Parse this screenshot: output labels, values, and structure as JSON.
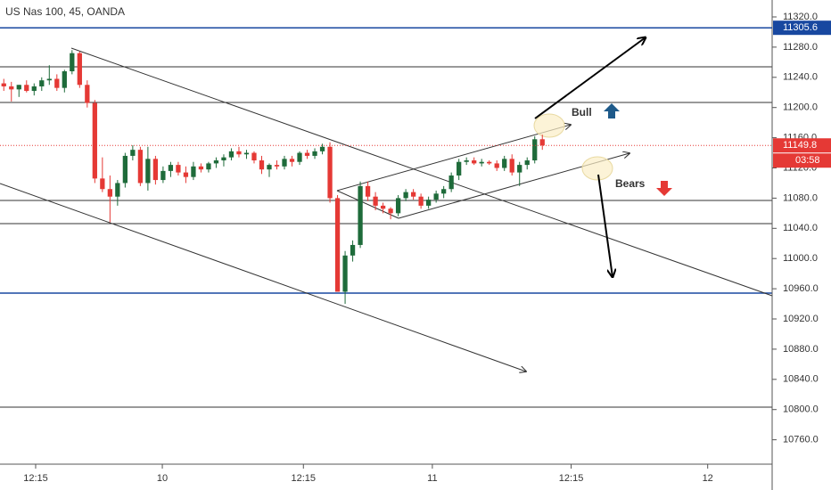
{
  "chart_data": {
    "type": "candlestick",
    "title": "US Nas 100, 45, OANDA",
    "x": [
      0,
      1,
      2,
      3,
      4,
      5,
      6,
      7,
      8,
      9,
      10,
      11,
      12,
      13,
      14,
      15,
      16,
      17,
      18,
      19,
      20,
      21,
      22,
      23,
      24,
      25,
      26,
      27,
      28,
      29,
      30,
      31,
      32,
      33,
      34,
      35,
      36,
      37,
      38,
      39,
      40,
      41,
      42,
      43,
      44,
      45,
      46,
      47,
      48,
      49,
      50,
      51,
      52,
      53,
      54,
      55,
      56,
      57,
      58,
      59,
      60,
      61,
      62,
      63,
      64,
      65,
      66,
      67,
      68,
      69,
      70,
      71
    ],
    "ohlc": [
      [
        11232,
        11238,
        11222,
        11228
      ],
      [
        11228,
        11234,
        11208,
        11224
      ],
      [
        11224,
        11230,
        11214,
        11230
      ],
      [
        11230,
        11236,
        11220,
        11222
      ],
      [
        11222,
        11232,
        11216,
        11228
      ],
      [
        11228,
        11240,
        11222,
        11236
      ],
      [
        11236,
        11256,
        11230,
        11238
      ],
      [
        11238,
        11244,
        11222,
        11226
      ],
      [
        11226,
        11250,
        11220,
        11248
      ],
      [
        11248,
        11276,
        11244,
        11272
      ],
      [
        11272,
        11274,
        11226,
        11230
      ],
      [
        11230,
        11236,
        11200,
        11206
      ],
      [
        11206,
        11210,
        11100,
        11106
      ],
      [
        11106,
        11134,
        11088,
        11092
      ],
      [
        11092,
        11110,
        11048,
        11082
      ],
      [
        11082,
        11104,
        11070,
        11100
      ],
      [
        11100,
        11140,
        11094,
        11136
      ],
      [
        11136,
        11150,
        11130,
        11144
      ],
      [
        11144,
        11148,
        11096,
        11100
      ],
      [
        11100,
        11148,
        11090,
        11132
      ],
      [
        11132,
        11136,
        11098,
        11104
      ],
      [
        11104,
        11122,
        11100,
        11116
      ],
      [
        11116,
        11128,
        11108,
        11124
      ],
      [
        11124,
        11128,
        11110,
        11114
      ],
      [
        11114,
        11122,
        11100,
        11108
      ],
      [
        11108,
        11128,
        11104,
        11122
      ],
      [
        11122,
        11126,
        11114,
        11118
      ],
      [
        11118,
        11128,
        11114,
        11126
      ],
      [
        11126,
        11134,
        11120,
        11130
      ],
      [
        11130,
        11138,
        11122,
        11134
      ],
      [
        11134,
        11146,
        11130,
        11142
      ],
      [
        11142,
        11148,
        11134,
        11138
      ],
      [
        11138,
        11144,
        11132,
        11140
      ],
      [
        11140,
        11142,
        11126,
        11130
      ],
      [
        11130,
        11136,
        11112,
        11118
      ],
      [
        11118,
        11126,
        11108,
        11124
      ],
      [
        11124,
        11130,
        11118,
        11122
      ],
      [
        11122,
        11136,
        11118,
        11132
      ],
      [
        11132,
        11136,
        11122,
        11128
      ],
      [
        11128,
        11142,
        11124,
        11140
      ],
      [
        11140,
        11144,
        11132,
        11136
      ],
      [
        11136,
        11146,
        11132,
        11142
      ],
      [
        11142,
        11152,
        11138,
        11148
      ],
      [
        11148,
        11154,
        11074,
        11080
      ],
      [
        11080,
        11084,
        10956,
        10956
      ],
      [
        10956,
        11010,
        10940,
        11004
      ],
      [
        11004,
        11024,
        10996,
        11018
      ],
      [
        11018,
        11102,
        11014,
        11096
      ],
      [
        11096,
        11102,
        11076,
        11082
      ],
      [
        11082,
        11088,
        11064,
        11070
      ],
      [
        11070,
        11074,
        11060,
        11066
      ],
      [
        11066,
        11068,
        11052,
        11060
      ],
      [
        11060,
        11084,
        11056,
        11080
      ],
      [
        11080,
        11092,
        11076,
        11088
      ],
      [
        11088,
        11092,
        11078,
        11082
      ],
      [
        11082,
        11086,
        11066,
        11070
      ],
      [
        11070,
        11082,
        11066,
        11078
      ],
      [
        11078,
        11090,
        11074,
        11086
      ],
      [
        11086,
        11096,
        11080,
        11092
      ],
      [
        11092,
        11114,
        11088,
        11110
      ],
      [
        11110,
        11132,
        11104,
        11128
      ],
      [
        11128,
        11134,
        11124,
        11130
      ],
      [
        11130,
        11134,
        11124,
        11126
      ],
      [
        11126,
        11132,
        11122,
        11128
      ],
      [
        11128,
        11130,
        11124,
        11126
      ],
      [
        11126,
        11130,
        11116,
        11120
      ],
      [
        11120,
        11136,
        11116,
        11132
      ],
      [
        11132,
        11138,
        11110,
        11114
      ],
      [
        11114,
        11128,
        11096,
        11124
      ],
      [
        11124,
        11134,
        11118,
        11130
      ],
      [
        11130,
        11162,
        11126,
        11158
      ],
      [
        11158,
        11164,
        11144,
        11149.8
      ]
    ],
    "up_color": "#1e6b3a",
    "down_color": "#e53935",
    "xlim": [
      -0.5,
      101.3
    ],
    "xticks": [
      {
        "value": 4.2,
        "label": "12:15"
      },
      {
        "value": 20.9,
        "label": "10"
      },
      {
        "value": 39.5,
        "label": "12:15"
      },
      {
        "value": 56.5,
        "label": "11"
      },
      {
        "value": 74.8,
        "label": "12:15"
      },
      {
        "value": 92.8,
        "label": "12"
      }
    ],
    "ylim": [
      10727.7,
      11342.4
    ],
    "yticks": [
      {
        "value": 10760,
        "label": "10760.0"
      },
      {
        "value": 10800,
        "label": "10800.0"
      },
      {
        "value": 10840,
        "label": "10840.0"
      },
      {
        "value": 10880,
        "label": "10880.0"
      },
      {
        "value": 10920,
        "label": "10920.0"
      },
      {
        "value": 10960,
        "label": "10960.0"
      },
      {
        "value": 11000,
        "label": "11000.0"
      },
      {
        "value": 11040,
        "label": "11040.0"
      },
      {
        "value": 11080,
        "label": "11080.0"
      },
      {
        "value": 11120,
        "label": "11120.0"
      },
      {
        "value": 11160,
        "label": "11160.0"
      },
      {
        "value": 11200,
        "label": "11200.0"
      },
      {
        "value": 11240,
        "label": "11240.0"
      },
      {
        "value": 11280,
        "label": "11280.0"
      },
      {
        "value": 11320,
        "label": "11320.0"
      }
    ],
    "price_lines": [
      {
        "value": 11305.6,
        "color": "#1848a0"
      },
      {
        "value": 11149.8,
        "color": "#e53935"
      }
    ],
    "countdown": "03:58",
    "annotations": [
      "Bull",
      "Bears"
    ]
  }
}
